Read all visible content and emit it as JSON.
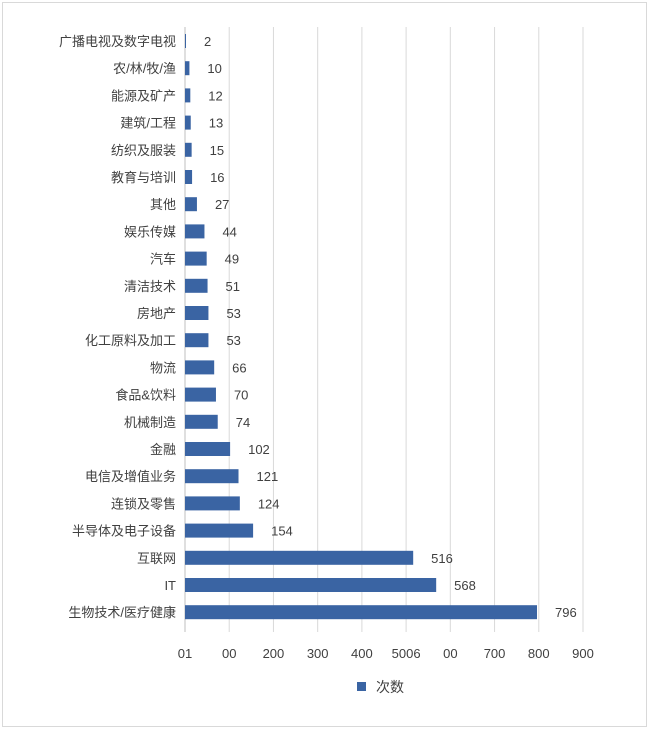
{
  "chart_data": {
    "type": "bar",
    "orientation": "horizontal",
    "categories": [
      "广播电视及数字电视",
      "农/林/牧/渔",
      "能源及矿产",
      "建筑/工程",
      "纺织及服装",
      "教育与培训",
      "其他",
      "娱乐传媒",
      "汽车",
      "清洁技术",
      "房地产",
      "化工原料及加工",
      "物流",
      "食品&饮料",
      "机械制造",
      "金融",
      "电信及增值业务",
      "连锁及零售",
      "半导体及电子设备",
      "互联网",
      "IT",
      "生物技术/医疗健康"
    ],
    "series": [
      {
        "name": "次数",
        "values": [
          2,
          10,
          12,
          13,
          15,
          16,
          27,
          44,
          49,
          51,
          53,
          53,
          66,
          70,
          74,
          102,
          121,
          124,
          154,
          516,
          568,
          796
        ]
      }
    ],
    "x_tick_labels": [
      "01",
      "00",
      "200",
      "300",
      "400",
      "5006",
      "00",
      "700",
      "800",
      "900"
    ],
    "xlim": [
      0,
      900
    ],
    "grid": "vertical",
    "legend": "bottom",
    "colors": {
      "bar": "#3a64a3",
      "grid": "#d9d9d9",
      "text": "#404040"
    }
  }
}
